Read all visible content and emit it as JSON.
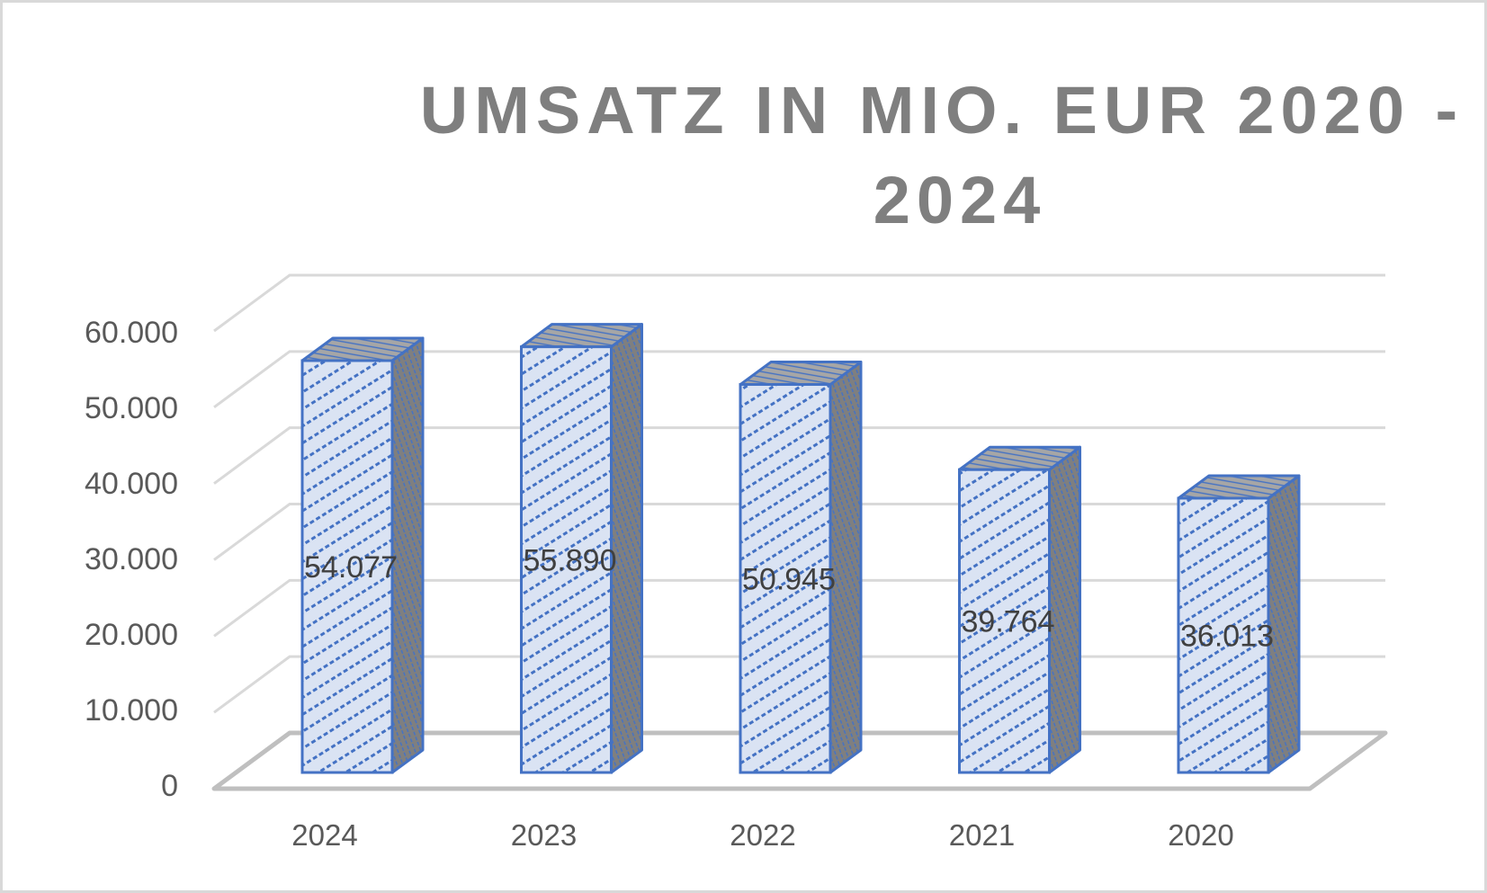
{
  "chart_data": {
    "type": "bar",
    "subtype": "3d-column",
    "title": "UMSATZ IN MIO. EUR 2020 - 2024",
    "title_lines": [
      "UMSATZ IN MIO. EUR 2020 -",
      "2024"
    ],
    "xlabel": "",
    "ylabel": "",
    "categories": [
      "2024",
      "2023",
      "2022",
      "2021",
      "2020"
    ],
    "values": [
      54077,
      55890,
      50945,
      39764,
      36013
    ],
    "data_labels": [
      "54.077",
      "55.890",
      "50.945",
      "39.764",
      "36.013"
    ],
    "y_ticks": [
      "0",
      "10.000",
      "20.000",
      "30.000",
      "40.000",
      "50.000",
      "60.000"
    ],
    "ylim": [
      0,
      60000
    ],
    "grid": true,
    "legend": "none",
    "colors": {
      "bar_front": "#dae3f3",
      "bar_pattern": "#4472c4",
      "bar_side": "#7f7f7f",
      "bar_border": "#4472c4",
      "gridline": "#d9d9d9",
      "floor": "#bfbfbf",
      "title": "#7f7f7f",
      "axis_text": "#595959",
      "label_text": "#404040"
    }
  }
}
